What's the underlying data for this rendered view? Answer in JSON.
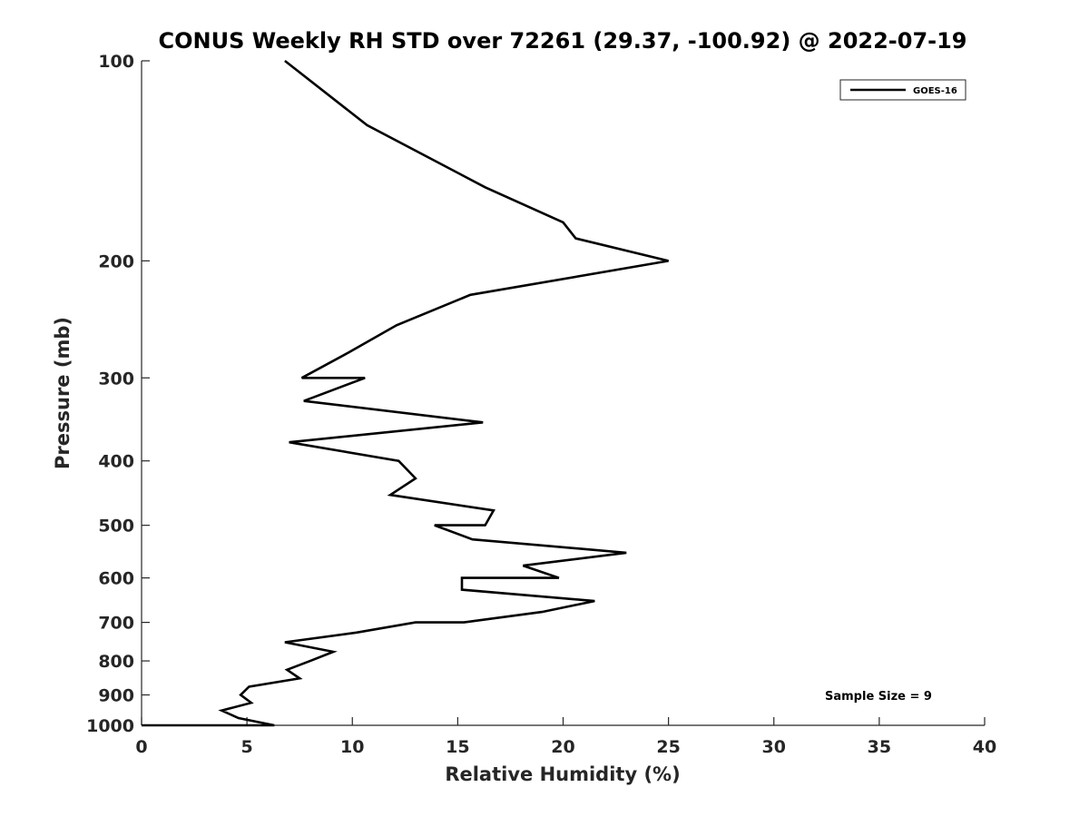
{
  "chart_data": {
    "type": "line",
    "title": "CONUS Weekly RH STD over 72261 (29.37, -100.92) @ 2022-07-19",
    "xlabel": "Relative Humidity (%)",
    "ylabel": "Pressure (mb)",
    "xlim": [
      0,
      40
    ],
    "ylim": [
      100,
      1000
    ],
    "yscale": "log",
    "y_reversed": true,
    "x_ticks": [
      0,
      5,
      10,
      15,
      20,
      25,
      30,
      35,
      40
    ],
    "y_ticks": [
      100,
      200,
      300,
      400,
      500,
      600,
      700,
      800,
      900,
      1000
    ],
    "grid": false,
    "legend": {
      "position": "top-right",
      "entries": [
        "GOES-16"
      ]
    },
    "annotation": "Sample Size = 9",
    "series": [
      {
        "name": "GOES-16",
        "color": "#000000",
        "points": [
          [
            6.8,
            100
          ],
          [
            10.7,
            125
          ],
          [
            16.3,
            155
          ],
          [
            20.0,
            175
          ],
          [
            20.6,
            185
          ],
          [
            25.0,
            200
          ],
          [
            15.6,
            225
          ],
          [
            12.1,
            250
          ],
          [
            9.8,
            275
          ],
          [
            7.6,
            300
          ],
          [
            10.6,
            300
          ],
          [
            7.7,
            325
          ],
          [
            16.2,
            350
          ],
          [
            7.0,
            375
          ],
          [
            12.2,
            400
          ],
          [
            13.0,
            425
          ],
          [
            11.8,
            450
          ],
          [
            16.7,
            475
          ],
          [
            16.3,
            500
          ],
          [
            13.9,
            500
          ],
          [
            15.7,
            525
          ],
          [
            23.0,
            550
          ],
          [
            18.1,
            575
          ],
          [
            19.8,
            600
          ],
          [
            15.2,
            600
          ],
          [
            15.2,
            625
          ],
          [
            21.5,
            650
          ],
          [
            19.0,
            675
          ],
          [
            15.3,
            700
          ],
          [
            13.0,
            700
          ],
          [
            10.2,
            725
          ],
          [
            6.8,
            750
          ],
          [
            9.1,
            775
          ],
          [
            8.0,
            800
          ],
          [
            6.9,
            825
          ],
          [
            7.5,
            850
          ],
          [
            5.1,
            875
          ],
          [
            4.7,
            900
          ],
          [
            5.2,
            925
          ],
          [
            3.8,
            950
          ],
          [
            4.6,
            975
          ],
          [
            6.3,
            1000
          ],
          [
            0.0,
            1000
          ]
        ]
      }
    ]
  }
}
